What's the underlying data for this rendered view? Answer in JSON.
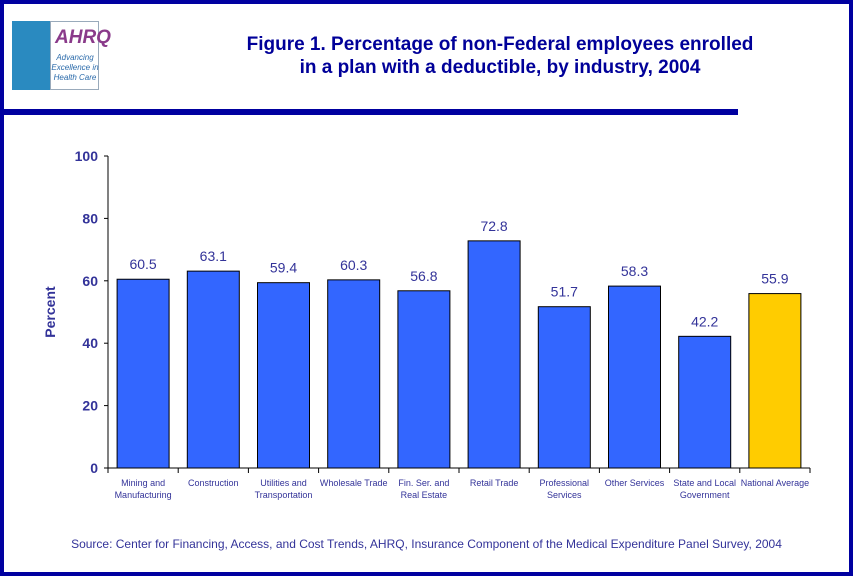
{
  "logo": {
    "name": "AHRQ",
    "tagline": "Advancing Excellence in Health Care"
  },
  "chart_data": {
    "type": "bar",
    "title": "Figure 1. Percentage of non-Federal  employees enrolled in a plan with a deductible, by industry, 2004",
    "title_lines": [
      "Figure 1. Percentage of non-Federal  employees enrolled",
      "in a plan with a deductible, by industry, 2004"
    ],
    "ylabel": "Percent",
    "xlabel": "",
    "ylim": [
      0,
      100
    ],
    "yticks": [
      0,
      20,
      40,
      60,
      80,
      100
    ],
    "categories": [
      [
        "Mining and",
        "Manufacturing"
      ],
      [
        "Construction"
      ],
      [
        "Utilities and",
        "Transportation"
      ],
      [
        "Wholesale Trade"
      ],
      [
        "Fin. Ser. and",
        "Real Estate"
      ],
      [
        "Retail Trade"
      ],
      [
        "Professional",
        "Services"
      ],
      [
        "Other Services"
      ],
      [
        "State and Local",
        "Government"
      ],
      [
        "National Average"
      ]
    ],
    "values": [
      60.5,
      63.1,
      59.4,
      60.3,
      56.8,
      72.8,
      51.7,
      58.3,
      42.2,
      55.9
    ],
    "value_labels": [
      "60.5",
      "63.1",
      "59.4",
      "60.3",
      "56.8",
      "72.8",
      "51.7",
      "58.3",
      "42.2",
      "55.9"
    ],
    "colors": {
      "bar": "#3366ff",
      "highlight": "#ffcc00"
    },
    "highlight_index": 9
  },
  "source": "Source: Center for Financing, Access, and Cost Trends, AHRQ, Insurance Component of the Medical Expenditure Panel Survey, 2004"
}
